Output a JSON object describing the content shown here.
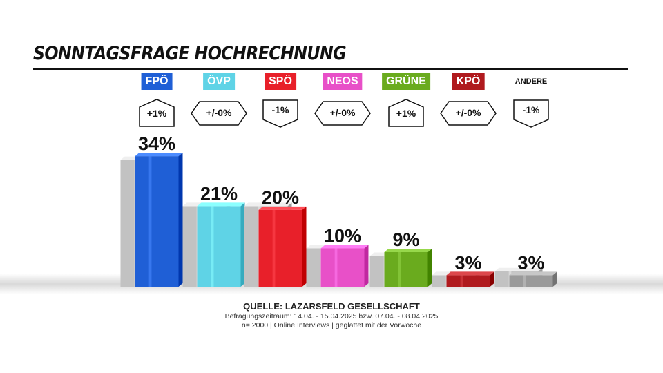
{
  "title": "SONNTAGSFRAGE HOCHRECHNUNG",
  "colors": {
    "FPÖ": "#1f5fd6",
    "ÖVP": "#5fd3e6",
    "SPÖ": "#e8202a",
    "NEOS": "#e850c8",
    "GRÜNE": "#6aab1e",
    "KPÖ": "#b01a1e",
    "ANDERE": "#9a9a9a",
    "previous": "#c2c2c2"
  },
  "chart_data": {
    "type": "bar",
    "categories": [
      "FPÖ",
      "ÖVP",
      "SPÖ",
      "NEOS",
      "GRÜNE",
      "KPÖ",
      "ANDERE"
    ],
    "series": [
      {
        "values": [
          34,
          21,
          20,
          10,
          9,
          3,
          3
        ],
        "value_labels": [
          "34%",
          "21%",
          "20%",
          "10%",
          "9%",
          "3%",
          "3%"
        ]
      },
      {
        "values": [
          33,
          21,
          21,
          10,
          8,
          3,
          4
        ]
      }
    ],
    "changes": [
      "+1%",
      "+/-0%",
      "-1%",
      "+/-0%",
      "+1%",
      "+/-0%",
      "-1%"
    ],
    "change_shapes": [
      "up",
      "flat",
      "down",
      "flat",
      "up",
      "flat",
      "down"
    ],
    "ylim": [
      0,
      36
    ]
  },
  "footer": {
    "source": "QUELLE: LAZARSFELD GESELLSCHAFT",
    "period": "Befragungszeitraum: 14.04. - 15.04.2025 bzw. 07.04. - 08.04.2025",
    "sample": "n= 2000 | Online Interviews | geglättet mit der Vorwoche"
  }
}
